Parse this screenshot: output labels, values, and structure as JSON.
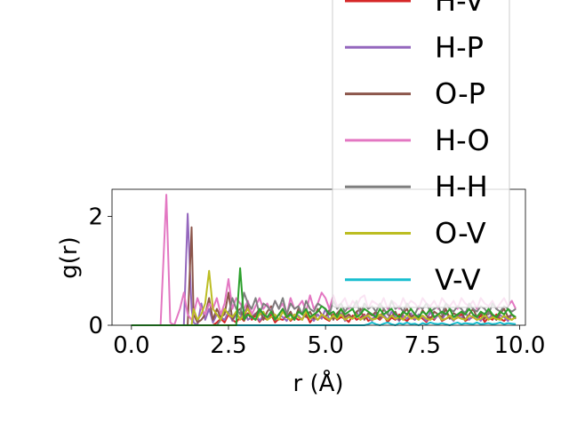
{
  "chart_data": {
    "type": "line",
    "title": "",
    "xlabel": "r (Å)",
    "ylabel": "g(r)",
    "xlim": [
      -0.5,
      10.15
    ],
    "ylim": [
      0,
      2.5
    ],
    "xticks": [
      0.0,
      2.5,
      5.0,
      7.5,
      10.0
    ],
    "xtick_labels": [
      "0.0",
      "2.5",
      "5.0",
      "7.5",
      "10.0"
    ],
    "yticks": [
      0,
      2
    ],
    "ytick_labels": [
      "0",
      "2"
    ],
    "grid": false,
    "legend_position": "upper-right, extending above the axes",
    "x": [
      0.0,
      0.25,
      0.5,
      0.75,
      0.9,
      1.0,
      1.1,
      1.25,
      1.35,
      1.45,
      1.55,
      1.6,
      1.7,
      1.8,
      1.9,
      2.0,
      2.1,
      2.2,
      2.3,
      2.4,
      2.5,
      2.6,
      2.7,
      2.8,
      2.9,
      3.0,
      3.1,
      3.2,
      3.3,
      3.4,
      3.5,
      3.6,
      3.7,
      3.8,
      3.9,
      4.0,
      4.1,
      4.2,
      4.3,
      4.4,
      4.5,
      4.6,
      4.7,
      4.8,
      4.9,
      5.0,
      5.1,
      5.2,
      5.3,
      5.4,
      5.5,
      5.6,
      5.7,
      5.8,
      5.9,
      6.0,
      6.1,
      6.2,
      6.3,
      6.4,
      6.5,
      6.6,
      6.7,
      6.8,
      6.9,
      7.0,
      7.1,
      7.2,
      7.3,
      7.4,
      7.5,
      7.6,
      7.7,
      7.8,
      7.9,
      8.0,
      8.1,
      8.2,
      8.3,
      8.4,
      8.5,
      8.6,
      8.7,
      8.8,
      8.9,
      9.0,
      9.1,
      9.2,
      9.3,
      9.4,
      9.5,
      9.6,
      9.7,
      9.8,
      9.9
    ],
    "series": [
      {
        "name": "H-V",
        "color": "#d62728",
        "values": [
          0,
          0,
          0,
          0,
          0,
          0,
          0,
          0,
          0,
          0,
          0,
          0,
          0,
          0,
          0,
          0,
          0,
          0.05,
          0.12,
          0.05,
          0.2,
          0.1,
          0.05,
          0.15,
          0.08,
          0.22,
          0.1,
          0.18,
          0.06,
          0.15,
          0.1,
          0.2,
          0.05,
          0.12,
          0.1,
          0.18,
          0.08,
          0.15,
          0.1,
          0.12,
          0.2,
          0.05,
          0.15,
          0.1,
          0.18,
          0.12,
          0.08,
          0.2,
          0.1,
          0.15,
          0.12,
          0.06,
          0.18,
          0.1,
          0.14,
          0.2,
          0.08,
          0.12,
          0.15,
          0.1,
          0.18,
          0.06,
          0.14,
          0.1,
          0.2,
          0.12,
          0.08,
          0.15,
          0.1,
          0.18,
          0.12,
          0.06,
          0.15,
          0.1,
          0.2,
          0.08,
          0.12,
          0.16,
          0.1,
          0.14,
          0.2,
          0.08,
          0.12,
          0.15,
          0.1,
          0.18,
          0.06,
          0.14,
          0.1,
          0.2,
          0.12,
          0.08,
          0.15,
          0.1,
          0.16
        ]
      },
      {
        "name": "H-P",
        "color": "#9467bd",
        "values": [
          0,
          0,
          0,
          0,
          0,
          0,
          0,
          0,
          0,
          2.05,
          0.3,
          0.05,
          0,
          0.4,
          0.1,
          0.3,
          0.05,
          0.2,
          0.15,
          0.1,
          0.25,
          0.08,
          0.2,
          0.12,
          0.3,
          0.1,
          0.15,
          0.22,
          0.08,
          0.18,
          0.12,
          0.25,
          0.1,
          0.2,
          0.15,
          0.08,
          0.22,
          0.12,
          0.18,
          0.1,
          0.25,
          0.15,
          0.08,
          0.2,
          0.12,
          0.3,
          0.1,
          0.18,
          0.15,
          0.22,
          0.08,
          0.2,
          0.12,
          0.25,
          0.1,
          0.18,
          0.15,
          0.08,
          0.22,
          0.12,
          0.2,
          0.1,
          0.25,
          0.15,
          0.08,
          0.18,
          0.12,
          0.22,
          0.1,
          0.2,
          0.15,
          0.08,
          0.25,
          0.12,
          0.18,
          0.1,
          0.22,
          0.15,
          0.08,
          0.2,
          0.12,
          0.25,
          0.1,
          0.18,
          0.15,
          0.08,
          0.22,
          0.12,
          0.2,
          0.1,
          0.18,
          0.15,
          0.08,
          0.2,
          0.12
        ]
      },
      {
        "name": "O-P",
        "color": "#8c564b",
        "values": [
          0,
          0,
          0,
          0,
          0,
          0,
          0,
          0,
          0,
          0,
          1.8,
          0.2,
          0.05,
          0.1,
          0.2,
          0.5,
          0.1,
          0.3,
          0.15,
          0.2,
          0.6,
          0.1,
          0.25,
          0.3,
          0.1,
          0.4,
          0.15,
          0.2,
          0.3,
          0.1,
          0.25,
          0.35,
          0.12,
          0.2,
          0.3,
          0.15,
          0.25,
          0.1,
          0.3,
          0.2,
          0.15,
          0.25,
          0.12,
          0.3,
          0.2,
          0.15,
          0.28,
          0.1,
          0.22,
          0.3,
          0.15,
          0.2,
          0.12,
          0.25,
          0.3,
          0.1,
          0.22,
          0.18,
          0.25,
          0.12,
          0.3,
          0.2,
          0.15,
          0.25,
          0.1,
          0.22,
          0.3,
          0.15,
          0.2,
          0.12,
          0.28,
          0.18,
          0.1,
          0.25,
          0.2,
          0.15,
          0.3,
          0.12,
          0.22,
          0.18,
          0.25,
          0.1,
          0.2,
          0.3,
          0.15,
          0.22,
          0.12,
          0.25,
          0.18,
          0.1,
          0.22,
          0.3,
          0.15,
          0.2,
          0.12
        ]
      },
      {
        "name": "H-O",
        "color": "#e377c2",
        "values": [
          0,
          0,
          0,
          0,
          2.4,
          0.05,
          0,
          0.3,
          0.6,
          0.2,
          0.1,
          0.2,
          0.5,
          0.3,
          0.2,
          0.4,
          0.3,
          0.5,
          0.2,
          0.4,
          0.85,
          0.3,
          0.5,
          0.4,
          0.3,
          0.45,
          0.2,
          0.35,
          0.5,
          0.3,
          0.4,
          0.25,
          0.45,
          0.3,
          0.4,
          0.2,
          0.5,
          0.3,
          0.35,
          0.45,
          0.25,
          0.55,
          0.3,
          0.4,
          0.6,
          0.5,
          0.3,
          0.55,
          0.35,
          0.4,
          0.5,
          0.3,
          0.45,
          0.35,
          0.5,
          0.55,
          0.3,
          0.45,
          0.4,
          0.35,
          0.5,
          0.3,
          0.45,
          0.4,
          0.3,
          0.5,
          0.35,
          0.45,
          0.4,
          0.3,
          0.5,
          0.4,
          0.35,
          0.45,
          0.3,
          0.5,
          0.4,
          0.35,
          0.45,
          0.3,
          0.5,
          0.4,
          0.35,
          0.45,
          0.3,
          0.5,
          0.4,
          0.35,
          0.45,
          0.3,
          0.4,
          0.5,
          0.35,
          0.45,
          0.3
        ]
      },
      {
        "name": "H-H",
        "color": "#7f7f7f",
        "values": [
          0,
          0,
          0,
          0,
          0,
          0,
          0,
          0,
          0,
          0,
          0,
          0,
          0,
          0,
          0,
          0,
          0,
          0,
          0.1,
          0.3,
          0.2,
          0.5,
          0.3,
          0.2,
          0.6,
          0.4,
          0.3,
          0.5,
          0.2,
          0.4,
          0.35,
          0.25,
          0.45,
          0.3,
          0.5,
          0.2,
          0.4,
          0.3,
          0.35,
          0.2,
          0.45,
          0.3,
          0.25,
          0.4,
          0.35,
          0.3,
          0.2,
          0.45,
          0.3,
          0.4,
          0.25,
          0.35,
          0.3,
          0.45,
          0.2,
          0.4,
          0.3,
          0.35,
          0.25,
          0.4,
          0.3,
          0.2,
          0.45,
          0.3,
          0.35,
          0.25,
          0.4,
          0.3,
          0.2,
          0.35,
          0.3,
          0.4,
          0.25,
          0.3,
          0.35,
          0.2,
          0.4,
          0.3,
          0.25,
          0.35,
          0.3,
          0.2,
          0.4,
          0.3,
          0.25,
          0.35,
          0.3,
          0.2,
          0.4,
          0.3,
          0.25,
          0.35,
          0.3,
          0.25,
          0.3
        ]
      },
      {
        "name": "O-V",
        "color": "#bcbd22",
        "values": [
          0,
          0,
          0,
          0,
          0,
          0,
          0,
          0,
          0,
          0,
          0,
          0.3,
          0.1,
          0.2,
          0.4,
          1.0,
          0.3,
          0.2,
          0.1,
          0.3,
          0.2,
          0.15,
          0.25,
          0.1,
          0.2,
          0.3,
          0.15,
          0.1,
          0.2,
          0.25,
          0.1,
          0.15,
          0.2,
          0.1,
          0.25,
          0.15,
          0.1,
          0.2,
          0.15,
          0.1,
          0.25,
          0.12,
          0.18,
          0.1,
          0.2,
          0.15,
          0.1,
          0.18,
          0.12,
          0.2,
          0.1,
          0.15,
          0.12,
          0.2,
          0.1,
          0.15,
          0.18,
          0.1,
          0.12,
          0.2,
          0.15,
          0.1,
          0.18,
          0.12,
          0.15,
          0.1,
          0.2,
          0.12,
          0.15,
          0.1,
          0.18,
          0.12,
          0.1,
          0.15,
          0.2,
          0.1,
          0.12,
          0.18,
          0.1,
          0.15,
          0.12,
          0.1,
          0.18,
          0.15,
          0.1,
          0.12,
          0.2,
          0.1,
          0.15,
          0.12,
          0.1,
          0.18,
          0.12,
          0.1,
          0.15
        ]
      },
      {
        "name": "V-V",
        "color": "#17becf",
        "values": [
          0,
          0,
          0,
          0,
          0,
          0,
          0,
          0,
          0,
          0,
          0,
          0,
          0,
          0,
          0,
          0,
          0,
          0,
          0,
          0,
          0,
          0,
          0,
          0,
          0,
          0,
          0,
          0,
          0,
          0,
          0,
          0,
          0,
          0,
          0,
          0,
          0,
          0,
          0,
          0,
          0,
          0,
          0,
          0,
          0,
          0,
          0,
          0,
          0,
          0,
          0,
          0,
          0,
          0,
          0,
          0,
          0.02,
          0.05,
          0.02,
          0,
          0.03,
          0.05,
          0.02,
          0,
          0.04,
          0.02,
          0.05,
          0.02,
          0.03,
          0,
          0.04,
          0.02,
          0.05,
          0.03,
          0.02,
          0.04,
          0.02,
          0,
          0.03,
          0.05,
          0.02,
          0.04,
          0.03,
          0.02,
          0.05,
          0.02,
          0.03,
          0.04,
          0.02,
          0.03,
          0.05,
          0.02,
          0.04,
          0.03,
          0.02
        ]
      },
      {
        "name": "",
        "color": "#2ca02c",
        "values": [
          0,
          0,
          0,
          0,
          0,
          0,
          0,
          0,
          0,
          0,
          0,
          0,
          0,
          0,
          0,
          0,
          0,
          0,
          0,
          0,
          0,
          0,
          0,
          1.05,
          0.1,
          0.2,
          0.15,
          0.1,
          0.3,
          0.2,
          0.15,
          0.25,
          0.1,
          0.2,
          0.3,
          0.15,
          0.2,
          0.1,
          0.25,
          0.2,
          0.3,
          0.15,
          0.2,
          0.25,
          0.35,
          0.3,
          0.2,
          0.25,
          0.15,
          0.3,
          0.2,
          0.25,
          0.3,
          0.15,
          0.2,
          0.3,
          0.25,
          0.2,
          0.15,
          0.3,
          0.2,
          0.25,
          0.3,
          0.2,
          0.15,
          0.25,
          0.2,
          0.3,
          0.2,
          0.15,
          0.25,
          0.2,
          0.3,
          0.15,
          0.2,
          0.25,
          0.2,
          0.3,
          0.15,
          0.2,
          0.25,
          0.2,
          0.3,
          0.2,
          0.15,
          0.25,
          0.2,
          0.3,
          0.2,
          0.15,
          0.25,
          0.2,
          0.3,
          0.2,
          0.15
        ]
      }
    ],
    "legend": [
      {
        "label": "H-V",
        "color": "#d62728"
      },
      {
        "label": "H-P",
        "color": "#9467bd"
      },
      {
        "label": "O-P",
        "color": "#8c564b"
      },
      {
        "label": "H-O",
        "color": "#e377c2"
      },
      {
        "label": "H-H",
        "color": "#7f7f7f"
      },
      {
        "label": "O-V",
        "color": "#bcbd22"
      },
      {
        "label": "V-V",
        "color": "#17becf"
      }
    ]
  }
}
